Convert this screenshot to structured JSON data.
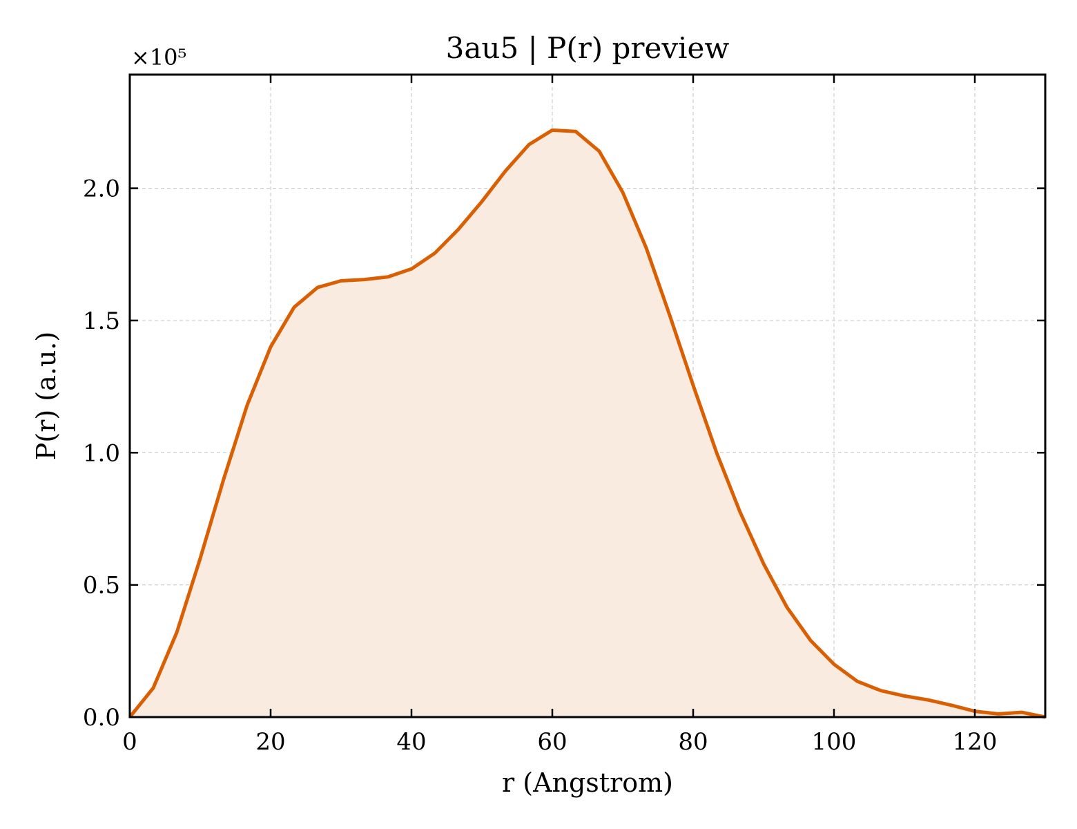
{
  "chart_data": {
    "type": "area",
    "title": "3au5 | P(r) preview",
    "xlabel": "r (Angstrom)",
    "ylabel": "P(r) (a.u.)",
    "y_multiplier_label": "×10⁵",
    "xlim": [
      0,
      130
    ],
    "ylim": [
      0,
      2.43
    ],
    "x_ticks": [
      0,
      20,
      40,
      60,
      80,
      100,
      120
    ],
    "y_ticks": [
      0.0,
      0.5,
      1.0,
      1.5,
      2.0
    ],
    "x_tick_labels": [
      "0",
      "20",
      "40",
      "60",
      "80",
      "100",
      "120"
    ],
    "y_tick_labels": [
      "0.0",
      "0.5",
      "1.0",
      "1.5",
      "2.0"
    ],
    "grid": true,
    "line_color": "#d95f02",
    "fill_color": "#f9ebe0",
    "series": [
      {
        "x": [
          0,
          3.33,
          6.67,
          10,
          13.33,
          16.67,
          20,
          23.33,
          26.67,
          30,
          33.33,
          36.67,
          40,
          43.33,
          46.67,
          50,
          53.33,
          56.67,
          60,
          63.33,
          66.67,
          70,
          73.33,
          76.67,
          80,
          83.33,
          86.67,
          90,
          93.33,
          96.67,
          100,
          103.33,
          106.67,
          110,
          113.33,
          116.67,
          120,
          123.33,
          126.67,
          130
        ],
        "y": [
          0.0,
          0.11,
          0.32,
          0.6,
          0.9,
          1.18,
          1.4,
          1.55,
          1.625,
          1.65,
          1.655,
          1.665,
          1.695,
          1.755,
          1.845,
          1.95,
          2.065,
          2.165,
          2.22,
          2.215,
          2.14,
          1.985,
          1.775,
          1.52,
          1.255,
          1.0,
          0.775,
          0.58,
          0.415,
          0.29,
          0.2,
          0.135,
          0.1,
          0.08,
          0.065,
          0.045,
          0.022,
          0.012,
          0.018,
          0.0
        ]
      }
    ]
  }
}
